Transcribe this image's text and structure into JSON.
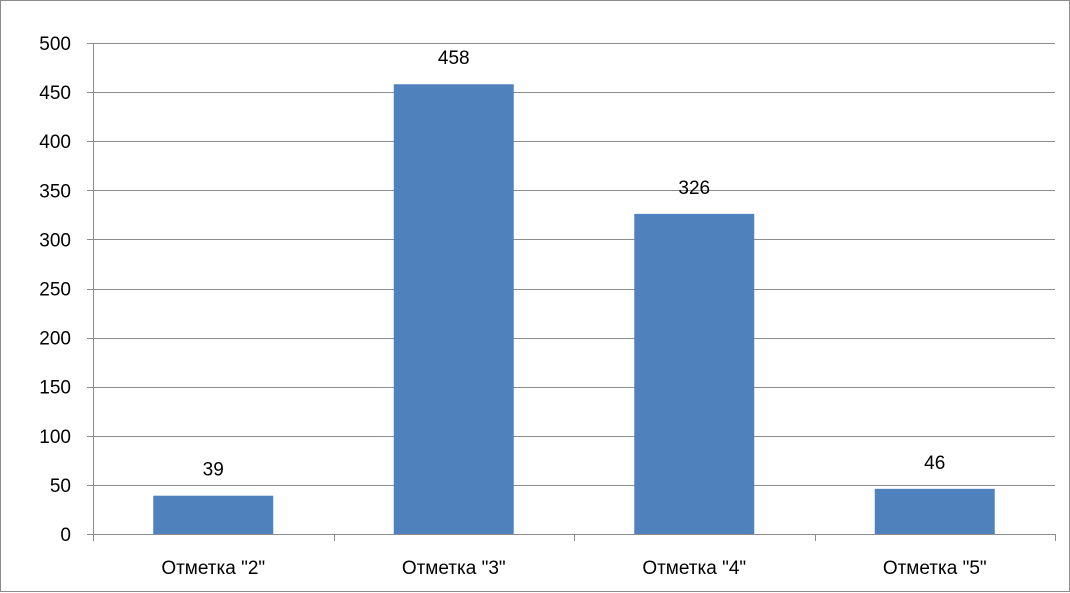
{
  "chart_data": {
    "type": "bar",
    "title": "",
    "xlabel": "",
    "ylabel": "",
    "categories": [
      "Отметка \"2\"",
      "Отметка \"3\"",
      "Отметка \"4\"",
      "Отметка \"5\""
    ],
    "series": [
      {
        "values": [
          39,
          458,
          326,
          46
        ]
      }
    ],
    "data_labels": [
      "39",
      "458",
      "326",
      "46"
    ],
    "ylim": [
      0,
      500
    ],
    "y_ticks": [
      "0",
      "50",
      "100",
      "150",
      "200",
      "250",
      "300",
      "350",
      "400",
      "450",
      "500"
    ],
    "y_tick_values": [
      0,
      50,
      100,
      150,
      200,
      250,
      300,
      350,
      400,
      450,
      500
    ],
    "grid": true,
    "legend": "none",
    "colors": {
      "bar": "#4F81BD",
      "grid": "#8C8C8C",
      "axis": "#8C8C8C",
      "text": "#000000"
    }
  }
}
